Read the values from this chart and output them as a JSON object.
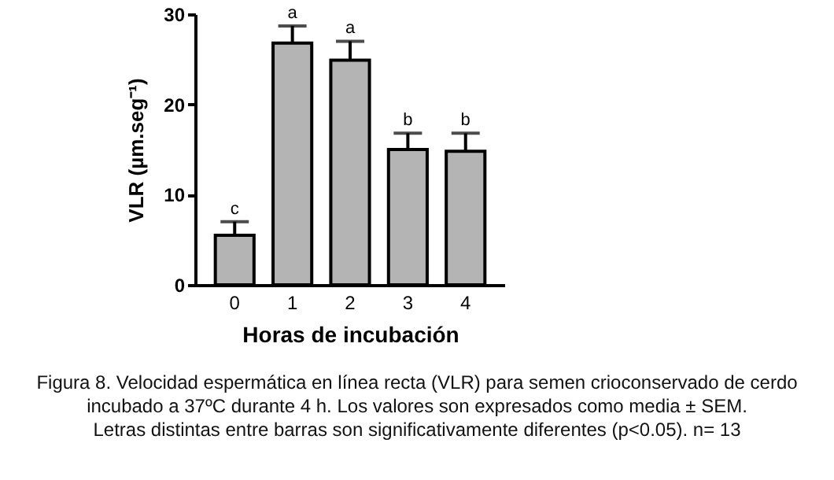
{
  "chart_data": {
    "type": "bar",
    "xlabel": "Horas de incubación",
    "ylabel": "VLR (µm.seg⁻¹)",
    "categories": [
      "0",
      "1",
      "2",
      "3",
      "4"
    ],
    "values": [
      5.5,
      26.8,
      24.9,
      15.0,
      14.8
    ],
    "errors": [
      1.5,
      1.9,
      2.1,
      1.8,
      2.0
    ],
    "color": "#b4b4b4",
    "ylim": [
      0,
      30
    ],
    "yticks": [
      0,
      10,
      20,
      30
    ],
    "grid": false,
    "annotations": [
      {
        "text": "c",
        "x": "0",
        "y": 7.0
      },
      {
        "text": "a",
        "x": "1",
        "y": 28.7
      },
      {
        "text": "a",
        "x": "2",
        "y": 27.0
      },
      {
        "text": "b",
        "x": "3",
        "y": 16.8
      },
      {
        "text": "b",
        "x": "4",
        "y": 16.8
      },
      "Figura 8. Velocidad espermática en línea recta (VLR) para semen crioconservado de cerdo",
      "incubado a 37ºC durante 4 h. Los valores son expresados como media ± SEM.",
      "Letras distintas entre barras son significativamente diferentes (p<0.05). n= 13"
    ]
  }
}
